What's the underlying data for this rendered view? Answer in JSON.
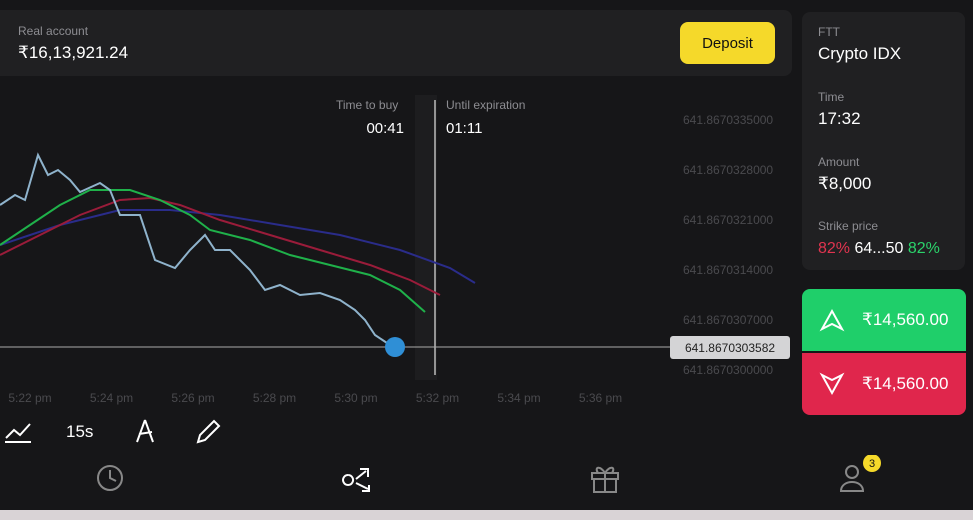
{
  "header": {
    "account_label": "Real account",
    "balance": "₹16,13,921.24",
    "deposit": "Deposit"
  },
  "chart": {
    "time_to_buy_label": "Time to buy",
    "time_to_buy": "00:41",
    "until_expiration_label": "Until expiration",
    "until_expiration": "01:11",
    "price_ticks": [
      "641.8670335000",
      "641.8670328000",
      "641.8670321000",
      "641.8670314000",
      "641.8670307000",
      "641.8670300000"
    ],
    "current_price": "641.8670303582",
    "time_ticks": [
      "5:22 pm",
      "5:24 pm",
      "5:26 pm",
      "5:28 pm",
      "5:30 pm",
      "5:32 pm",
      "5:34 pm",
      "5:36 pm"
    ]
  },
  "toolbar": {
    "interval": "15s"
  },
  "side": {
    "asset_type": "FTT",
    "asset": "Crypto IDX",
    "time_label": "Time",
    "time": "17:32",
    "amount_label": "Amount",
    "amount": "₹8,000",
    "strike_label": "Strike price",
    "strike_low": "82%",
    "strike": "64...50",
    "strike_high": "82%",
    "up": "₹14,560.00",
    "down": "₹14,560.00"
  },
  "nav": {
    "badge": "3"
  }
}
